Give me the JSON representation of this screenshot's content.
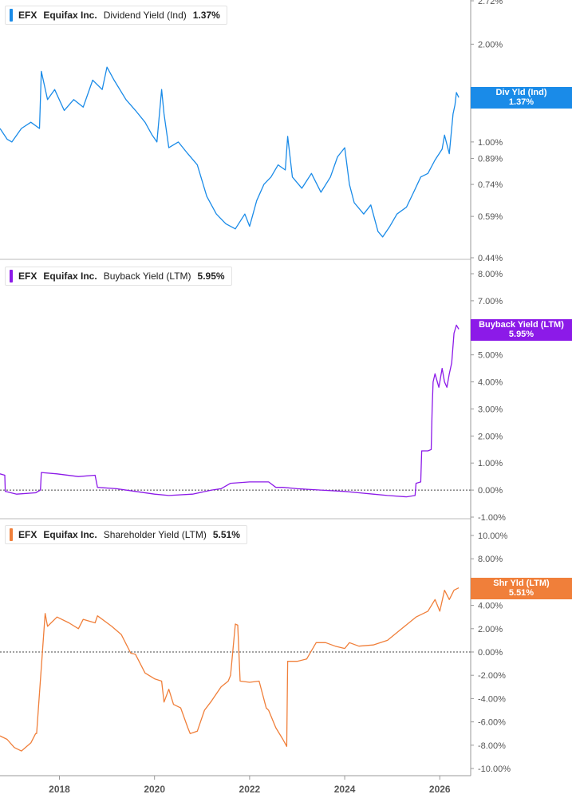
{
  "chart_data": [
    {
      "type": "line",
      "ticker": "EFX",
      "company": "Equifax Inc.",
      "metric": "Dividend Yield (Ind)",
      "current_value": "1.37%",
      "tag_label": "Div Yld (Ind)",
      "color": "#1a8be8",
      "y_scale": "log",
      "ylim": [
        0.44,
        2.72
      ],
      "y_ticks": [
        2.72,
        2.0,
        1.0,
        0.89,
        0.74,
        0.59,
        0.44
      ],
      "y_tick_labels": [
        "2.72%",
        "2.00%",
        "1.00%",
        "0.89%",
        "0.74%",
        "0.59%",
        "0.44%"
      ],
      "series": [
        {
          "x": [
            2016.75,
            2016.9,
            2017.0,
            2017.2,
            2017.4,
            2017.58,
            2017.62,
            2017.75,
            2017.9,
            2018.1,
            2018.3,
            2018.5,
            2018.7,
            2018.9,
            2019.0,
            2019.15,
            2019.4,
            2019.6,
            2019.8,
            2019.95,
            2020.05,
            2020.15,
            2020.2,
            2020.3,
            2020.5,
            2020.7,
            2020.9,
            2021.1,
            2021.3,
            2021.5,
            2021.7,
            2021.9,
            2022.0,
            2022.15,
            2022.3,
            2022.45,
            2022.6,
            2022.75,
            2022.8,
            2022.9,
            2023.1,
            2023.3,
            2023.5,
            2023.7,
            2023.85,
            2024.0,
            2024.1,
            2024.2,
            2024.4,
            2024.55,
            2024.7,
            2024.8,
            2024.95,
            2025.1,
            2025.3,
            2025.45,
            2025.6,
            2025.75,
            2025.9,
            2026.05,
            2026.1,
            2026.2,
            2026.28,
            2026.32,
            2026.35,
            2026.4
          ],
          "y": [
            1.1,
            1.02,
            1.0,
            1.1,
            1.15,
            1.1,
            1.65,
            1.35,
            1.45,
            1.25,
            1.35,
            1.28,
            1.55,
            1.45,
            1.7,
            1.55,
            1.35,
            1.25,
            1.15,
            1.05,
            1.0,
            1.45,
            1.22,
            0.96,
            1.0,
            0.92,
            0.85,
            0.68,
            0.6,
            0.56,
            0.54,
            0.6,
            0.55,
            0.66,
            0.74,
            0.78,
            0.85,
            0.82,
            1.04,
            0.78,
            0.72,
            0.8,
            0.7,
            0.78,
            0.9,
            0.96,
            0.74,
            0.65,
            0.6,
            0.64,
            0.53,
            0.51,
            0.55,
            0.6,
            0.63,
            0.7,
            0.78,
            0.8,
            0.88,
            0.95,
            1.05,
            0.92,
            1.22,
            1.3,
            1.42,
            1.37
          ]
        }
      ]
    },
    {
      "type": "line",
      "ticker": "EFX",
      "company": "Equifax Inc.",
      "metric": "Buyback Yield (LTM)",
      "current_value": "5.95%",
      "tag_label": "Buyback Yield (LTM)",
      "color": "#8c1ae8",
      "ylim": [
        -1.0,
        8.0
      ],
      "y_ticks": [
        8,
        7,
        5,
        4,
        3,
        2,
        1,
        0,
        -1
      ],
      "y_tick_labels": [
        "8.00%",
        "7.00%",
        "5.00%",
        "4.00%",
        "3.00%",
        "2.00%",
        "1.00%",
        "0.00%",
        "-1.00%"
      ],
      "series": [
        {
          "x": [
            2016.75,
            2016.85,
            2016.86,
            2017.1,
            2017.5,
            2017.6,
            2017.62,
            2017.95,
            2018.4,
            2018.75,
            2018.8,
            2019.2,
            2019.6,
            2020.0,
            2020.3,
            2020.8,
            2021.2,
            2021.4,
            2021.6,
            2022.0,
            2022.4,
            2022.55,
            2022.7,
            2023.0,
            2023.5,
            2024.0,
            2024.3,
            2024.6,
            2024.9,
            2025.3,
            2025.48,
            2025.5,
            2025.6,
            2025.62,
            2025.75,
            2025.82,
            2025.84,
            2025.86,
            2025.9,
            2025.98,
            2026.0,
            2026.05,
            2026.1,
            2026.15,
            2026.2,
            2026.25,
            2026.3,
            2026.35,
            2026.4
          ],
          "y": [
            0.6,
            0.55,
            -0.05,
            -0.15,
            -0.1,
            0.0,
            0.65,
            0.6,
            0.5,
            0.55,
            0.1,
            0.05,
            -0.05,
            -0.15,
            -0.2,
            -0.15,
            0.0,
            0.05,
            0.25,
            0.3,
            0.3,
            0.1,
            0.1,
            0.05,
            0.0,
            -0.05,
            -0.1,
            -0.15,
            -0.2,
            -0.25,
            -0.2,
            0.25,
            0.3,
            1.45,
            1.45,
            1.5,
            3.0,
            4.0,
            4.3,
            3.8,
            4.0,
            4.5,
            4.0,
            3.8,
            4.3,
            4.7,
            5.8,
            6.1,
            5.95
          ]
        }
      ]
    },
    {
      "type": "line",
      "ticker": "EFX",
      "company": "Equifax Inc.",
      "metric": "Shareholder Yield (LTM)",
      "current_value": "5.51%",
      "tag_label": "Shr Yld (LTM)",
      "color": "#f07f3a",
      "ylim": [
        -10.0,
        10.0
      ],
      "y_ticks": [
        10,
        8,
        4,
        2,
        0,
        -2,
        -4,
        -6,
        -8,
        -10
      ],
      "y_tick_labels": [
        "10.00%",
        "8.00%",
        "4.00%",
        "2.00%",
        "0.00%",
        "-2.00%",
        "-4.00%",
        "-6.00%",
        "-8.00%",
        "-10.00%"
      ],
      "series": [
        {
          "x": [
            2016.75,
            2016.9,
            2017.05,
            2017.2,
            2017.4,
            2017.5,
            2017.52,
            2017.7,
            2017.75,
            2017.95,
            2018.2,
            2018.4,
            2018.5,
            2018.75,
            2018.8,
            2019.1,
            2019.3,
            2019.5,
            2019.6,
            2019.8,
            2020.0,
            2020.15,
            2020.2,
            2020.3,
            2020.4,
            2020.55,
            2020.7,
            2020.75,
            2020.9,
            2021.05,
            2021.2,
            2021.4,
            2021.55,
            2021.6,
            2021.7,
            2021.75,
            2021.8,
            2022.0,
            2022.2,
            2022.35,
            2022.4,
            2022.55,
            2022.7,
            2022.78,
            2022.8,
            2023.0,
            2023.2,
            2023.4,
            2023.6,
            2023.8,
            2024.0,
            2024.1,
            2024.3,
            2024.6,
            2024.9,
            2025.2,
            2025.5,
            2025.75,
            2025.9,
            2026.0,
            2026.1,
            2026.2,
            2026.3,
            2026.4
          ],
          "y": [
            -7.2,
            -7.5,
            -8.2,
            -8.5,
            -7.8,
            -7.0,
            -7.0,
            3.3,
            2.2,
            3.0,
            2.5,
            2.0,
            2.8,
            2.5,
            3.1,
            2.2,
            1.5,
            -0.1,
            -0.2,
            -1.8,
            -2.3,
            -2.5,
            -4.3,
            -3.2,
            -4.5,
            -4.8,
            -6.5,
            -7.0,
            -6.8,
            -5.0,
            -4.2,
            -3.0,
            -2.5,
            -2.0,
            2.4,
            2.3,
            -2.5,
            -2.6,
            -2.5,
            -4.8,
            -5.0,
            -6.5,
            -7.5,
            -8.1,
            -0.8,
            -0.8,
            -0.6,
            0.8,
            0.8,
            0.5,
            0.3,
            0.8,
            0.5,
            0.6,
            1.0,
            2.0,
            3.0,
            3.5,
            4.5,
            3.5,
            5.3,
            4.5,
            5.3,
            5.51
          ]
        }
      ]
    }
  ],
  "x_axis": {
    "ticks": [
      2018,
      2020,
      2022,
      2024,
      2026
    ],
    "tick_labels": [
      "2018",
      "2020",
      "2022",
      "2024",
      "2026"
    ]
  }
}
